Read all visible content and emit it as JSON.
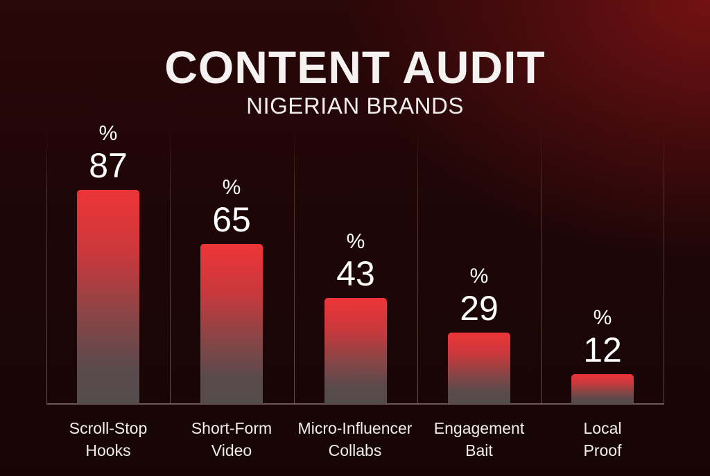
{
  "header": {
    "title": "CONTENT AUDIT",
    "subtitle": "NIGERIAN BRANDS"
  },
  "colors": {
    "bar_top": "#ee3538",
    "bar_bottom": "#544b4c",
    "background": "#1e0607",
    "accent_glow": "#78121a"
  },
  "bars": [
    {
      "label_line1": "Scroll-Stop",
      "label_line2": "Hooks",
      "value": "87",
      "unit": "%"
    },
    {
      "label_line1": "Short-Form",
      "label_line2": "Video",
      "value": "65",
      "unit": "%"
    },
    {
      "label_line1": "Micro-Influencer",
      "label_line2": "Collabs",
      "value": "43",
      "unit": "%"
    },
    {
      "label_line1": "Engagement",
      "label_line2": "Bait",
      "value": "29",
      "unit": "%"
    },
    {
      "label_line1": "Local",
      "label_line2": "Proof",
      "value": "12",
      "unit": "%"
    }
  ],
  "chart_data": {
    "type": "bar",
    "title": "CONTENT AUDIT",
    "subtitle": "NIGERIAN BRANDS",
    "categories": [
      "Scroll-Stop Hooks",
      "Short-Form Video",
      "Micro-Influencer Collabs",
      "Engagement Bait",
      "Local Proof"
    ],
    "values": [
      87,
      65,
      43,
      29,
      12
    ],
    "unit": "%",
    "xlabel": "",
    "ylabel": "",
    "ylim": [
      0,
      100
    ],
    "grid": "vertical separators between categories",
    "legend": "none",
    "data_labels": true
  }
}
